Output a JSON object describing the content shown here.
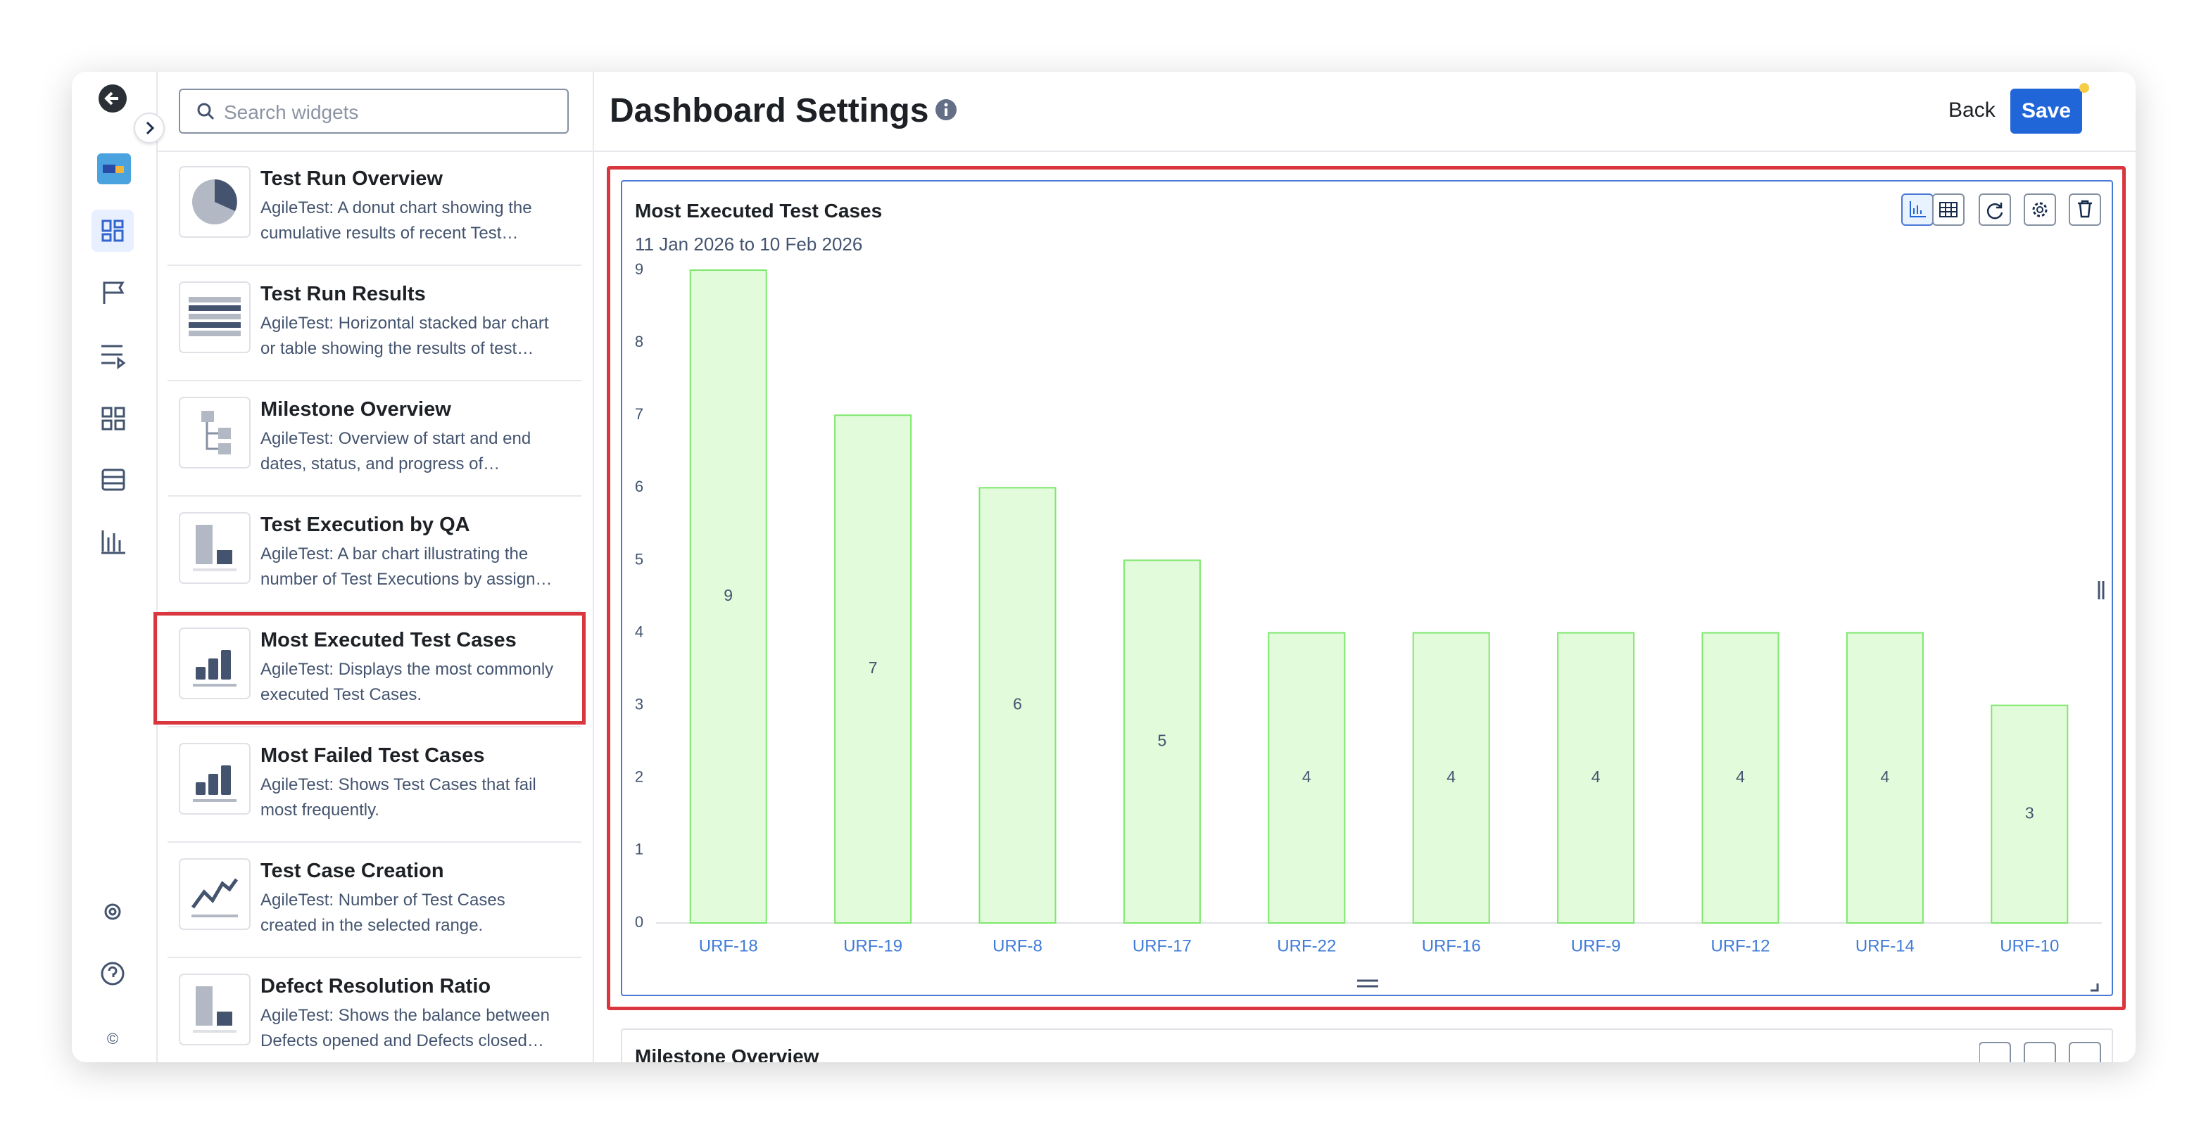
{
  "search_placeholder": "Search widgets",
  "header": {
    "title": "Dashboard Settings",
    "back": "Back",
    "save": "Save"
  },
  "widgets": [
    {
      "title": "Test Run Overview",
      "lines": [
        "AgileTest: A donut chart showing the",
        "cumulative results of recent Test…"
      ]
    },
    {
      "title": "Test Run Results",
      "lines": [
        "AgileTest: Horizontal stacked bar chart",
        "or table showing the results of test…"
      ]
    },
    {
      "title": "Milestone Overview",
      "lines": [
        "AgileTest: Overview of start and end",
        "dates, status, and progress of…"
      ]
    },
    {
      "title": "Test Execution by QA",
      "lines": [
        "AgileTest: A bar chart illustrating the",
        "number of Test Executions by assign…"
      ]
    },
    {
      "title": "Most Executed Test Cases",
      "lines": [
        "AgileTest: Displays the most commonly",
        "executed Test Cases."
      ]
    },
    {
      "title": "Most Failed Test Cases",
      "lines": [
        "AgileTest: Shows Test Cases that fail",
        "most frequently."
      ]
    },
    {
      "title": "Test Case Creation",
      "lines": [
        "AgileTest: Number of Test Cases",
        "created in the selected range."
      ]
    },
    {
      "title": "Defect Resolution Ratio",
      "lines": [
        "AgileTest: Shows the balance between",
        "Defects opened and Defects closed…"
      ]
    }
  ],
  "chart_data": {
    "type": "bar",
    "title": "Most Executed Test Cases",
    "subtitle": "11 Jan 2026 to 10 Feb 2026",
    "categories": [
      "URF-18",
      "URF-19",
      "URF-8",
      "URF-17",
      "URF-22",
      "URF-16",
      "URF-9",
      "URF-12",
      "URF-14",
      "URF-10"
    ],
    "values": [
      9,
      7,
      6,
      5,
      4,
      4,
      4,
      4,
      4,
      3
    ],
    "color": "#e2fbdb",
    "edge_color": "#7de86c",
    "ylim": [
      0,
      9
    ],
    "yticks": [
      0,
      1,
      2,
      3,
      4,
      5,
      6,
      7,
      8,
      9
    ]
  },
  "next_widget_title": "Milestone Overview"
}
